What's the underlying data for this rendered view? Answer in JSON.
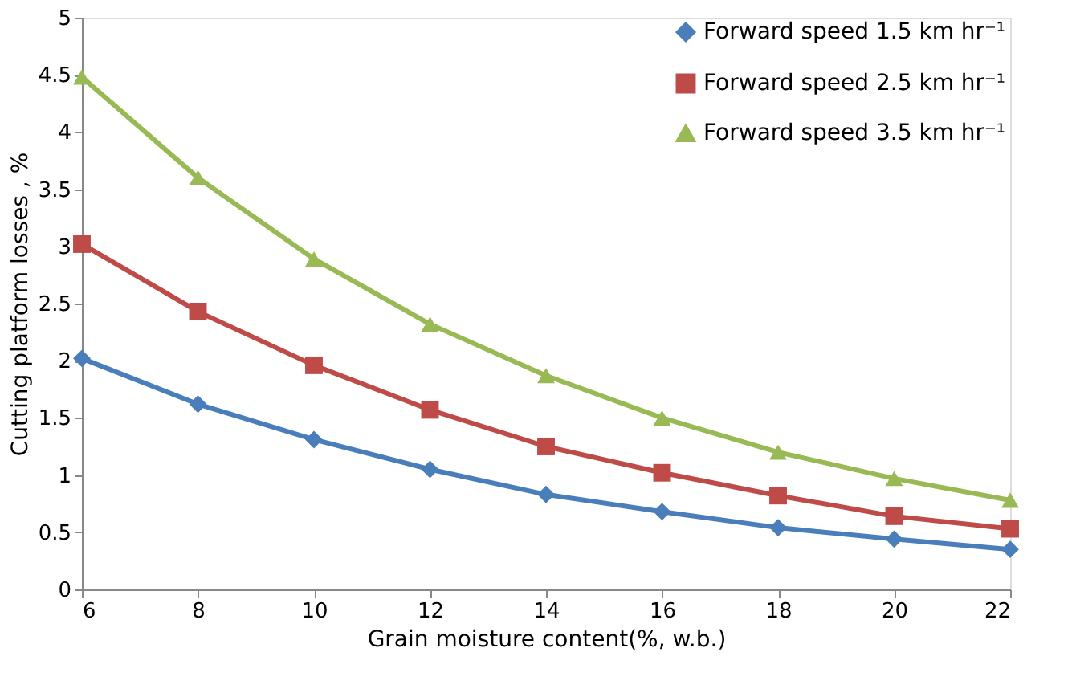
{
  "chart_data": {
    "type": "line",
    "xlabel": "Grain moisture content(%, w.b.)",
    "ylabel": "Cutting platform losses , %",
    "x": [
      6,
      8,
      10,
      12,
      14,
      16,
      18,
      20,
      22
    ],
    "series": [
      {
        "name": "Forward speed 1.5 km hr⁻¹",
        "color": "#4a7ebb",
        "marker": "diamond",
        "values": [
          2.02,
          1.62,
          1.31,
          1.05,
          0.83,
          0.68,
          0.54,
          0.44,
          0.35
        ]
      },
      {
        "name": "Forward speed 2.5 km hr⁻¹",
        "color": "#be4b48",
        "marker": "square",
        "values": [
          3.02,
          2.43,
          1.96,
          1.57,
          1.25,
          1.02,
          0.82,
          0.64,
          0.53
        ]
      },
      {
        "name": "Forward speed 3.5 km hr⁻¹",
        "color": "#98b954",
        "marker": "triangle",
        "values": [
          4.48,
          3.6,
          2.89,
          2.32,
          1.87,
          1.5,
          1.2,
          0.97,
          0.78
        ]
      }
    ],
    "xlim": [
      6,
      22
    ],
    "xticks": [
      6,
      8,
      10,
      12,
      14,
      16,
      18,
      20,
      22
    ],
    "ylim": [
      0,
      5
    ],
    "yticks": [
      0,
      0.5,
      1,
      1.5,
      2,
      2.5,
      3,
      3.5,
      4,
      4.5,
      5
    ],
    "grid": false,
    "legend": "top right",
    "line_style": "solid"
  }
}
